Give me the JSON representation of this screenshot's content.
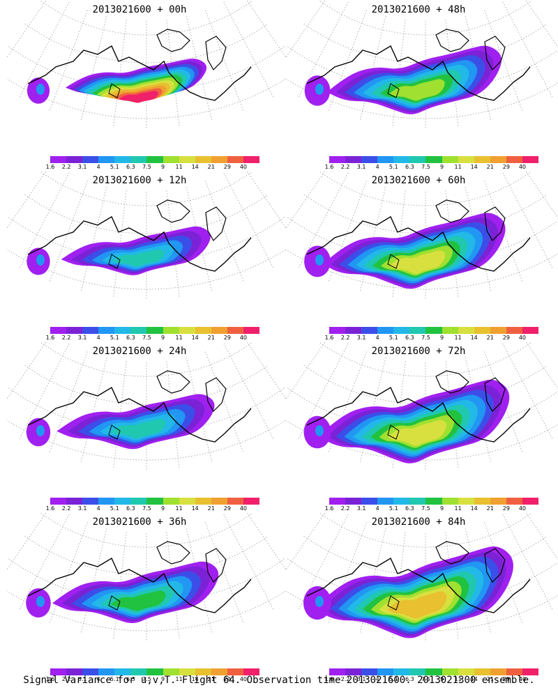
{
  "chart_data": {
    "type": "heatmap",
    "caption": "Signal Variance for u,v,T. Flight 64. Observation time 2013021600. 2013021300 ensemble.",
    "colorbar": {
      "labels": [
        "1.6",
        "2.2",
        "3.1",
        "4",
        "5.1",
        "6.3",
        "7.5",
        "9",
        "11",
        "14",
        "21",
        "29",
        "40"
      ],
      "colors": [
        "#a020f0",
        "#7b22d6",
        "#3c4ee8",
        "#2196f3",
        "#22b8e8",
        "#20c8b0",
        "#21c240",
        "#a0e030",
        "#d8e040",
        "#e8c030",
        "#f0a030",
        "#f06040",
        "#f0206a"
      ]
    },
    "panels": [
      {
        "title": "2013021600 + 00h",
        "lead_hours": 0,
        "max_level": "40"
      },
      {
        "title": "2013021600 + 48h",
        "lead_hours": 48,
        "max_level": "9"
      },
      {
        "title": "2013021600 + 12h",
        "lead_hours": 12,
        "max_level": "6.3"
      },
      {
        "title": "2013021600 + 60h",
        "lead_hours": 60,
        "max_level": "11"
      },
      {
        "title": "2013021600 + 24h",
        "lead_hours": 24,
        "max_level": "6.3"
      },
      {
        "title": "2013021600 + 72h",
        "lead_hours": 72,
        "max_level": "11"
      },
      {
        "title": "2013021600 + 36h",
        "lead_hours": 36,
        "max_level": "7.5"
      },
      {
        "title": "2013021600 + 84h",
        "lead_hours": 84,
        "max_level": "14"
      }
    ]
  }
}
